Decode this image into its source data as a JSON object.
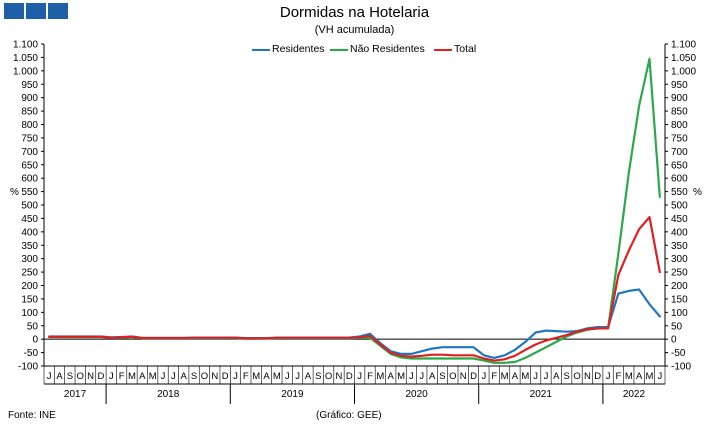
{
  "logo": {
    "colors": [
      "#1f5fa8",
      "#1f5fa8",
      "#1f5fa8"
    ]
  },
  "header": {
    "title": "Dormidas na Hotelaria",
    "subtitle": "(VH acumulada)"
  },
  "footer": {
    "source": "Fonte: INE",
    "credit": "(Gráfico: GEE)"
  },
  "chart_data": {
    "type": "line",
    "title": "Dormidas na Hotelaria",
    "subtitle": "(VH acumulada)",
    "ylabel_left": "%",
    "ylabel_right": "%",
    "ylim": [
      -100,
      1100
    ],
    "yticks": [
      -100,
      -50,
      0,
      50,
      100,
      150,
      200,
      250,
      300,
      350,
      400,
      450,
      500,
      550,
      600,
      650,
      700,
      750,
      800,
      850,
      900,
      950,
      1000,
      1050,
      1100
    ],
    "ytick_labels": [
      "-100",
      "-50",
      "0",
      "50",
      "100",
      "150",
      "200",
      "250",
      "300",
      "350",
      "400",
      "450",
      "500",
      "550",
      "600",
      "650",
      "700",
      "750",
      "800",
      "850",
      "900",
      "950",
      "1.000",
      "1.050",
      "1.100"
    ],
    "legend_position": "top-center",
    "grid": false,
    "months": [
      "J",
      "A",
      "S",
      "O",
      "N",
      "D",
      "J",
      "F",
      "M",
      "A",
      "M",
      "J",
      "J",
      "A",
      "S",
      "O",
      "N",
      "D",
      "J",
      "F",
      "M",
      "A",
      "M",
      "J",
      "J",
      "A",
      "S",
      "O",
      "N",
      "D",
      "J",
      "F",
      "M",
      "A",
      "M",
      "J",
      "J",
      "A",
      "S",
      "O",
      "N",
      "D",
      "J",
      "F",
      "M",
      "A",
      "M",
      "J",
      "J",
      "A",
      "S",
      "O",
      "N",
      "D",
      "J",
      "F",
      "M",
      "A",
      "M",
      "J"
    ],
    "years": [
      {
        "label": "2017",
        "start": 0,
        "end": 5
      },
      {
        "label": "2018",
        "start": 6,
        "end": 17
      },
      {
        "label": "2019",
        "start": 18,
        "end": 29
      },
      {
        "label": "2020",
        "start": 30,
        "end": 41
      },
      {
        "label": "2021",
        "start": 42,
        "end": 53
      },
      {
        "label": "2022",
        "start": 54,
        "end": 59
      }
    ],
    "series": [
      {
        "name": "Residentes",
        "color": "#1f77c4",
        "values": [
          10,
          10,
          10,
          10,
          10,
          10,
          7,
          8,
          10,
          5,
          5,
          5,
          5,
          5,
          6,
          6,
          6,
          6,
          6,
          4,
          4,
          4,
          6,
          6,
          6,
          6,
          6,
          6,
          6,
          6,
          10,
          20,
          -15,
          -45,
          -55,
          -55,
          -45,
          -35,
          -30,
          -30,
          -30,
          -30,
          -60,
          -70,
          -60,
          -40,
          -10,
          25,
          32,
          30,
          28,
          30,
          40,
          45,
          45,
          170,
          180,
          185,
          130,
          85
        ]
      },
      {
        "name": "Não Residentes",
        "color": "#2ca84c",
        "values": [
          8,
          8,
          8,
          8,
          8,
          8,
          6,
          6,
          8,
          4,
          4,
          4,
          4,
          4,
          4,
          4,
          4,
          4,
          4,
          2,
          2,
          3,
          4,
          4,
          4,
          4,
          4,
          4,
          4,
          4,
          5,
          5,
          -25,
          -55,
          -68,
          -72,
          -72,
          -72,
          -72,
          -72,
          -72,
          -72,
          -80,
          -88,
          -88,
          -85,
          -70,
          -50,
          -30,
          -10,
          10,
          25,
          35,
          40,
          40,
          320,
          620,
          870,
          1045,
          530
        ]
      },
      {
        "name": "Total",
        "color": "#e02020",
        "values": [
          9,
          9,
          9,
          9,
          9,
          9,
          6,
          7,
          9,
          4,
          4,
          4,
          4,
          4,
          5,
          5,
          5,
          5,
          5,
          3,
          3,
          3,
          5,
          5,
          5,
          5,
          5,
          5,
          5,
          5,
          7,
          12,
          -20,
          -50,
          -62,
          -65,
          -62,
          -58,
          -58,
          -60,
          -60,
          -60,
          -72,
          -80,
          -75,
          -62,
          -40,
          -20,
          -5,
          5,
          15,
          28,
          38,
          40,
          40,
          240,
          330,
          410,
          455,
          250
        ]
      }
    ]
  }
}
